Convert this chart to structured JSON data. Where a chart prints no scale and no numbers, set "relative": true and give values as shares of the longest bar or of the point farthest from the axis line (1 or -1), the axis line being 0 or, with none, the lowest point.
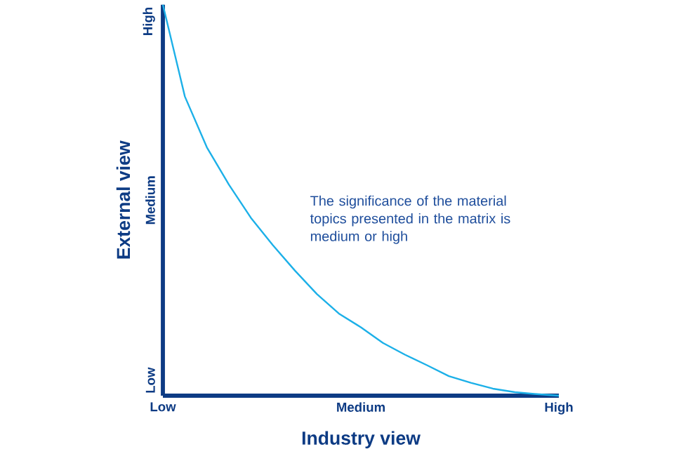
{
  "chart_data": {
    "type": "line",
    "xlabel": "Industry view",
    "ylabel": "External view",
    "relative": true,
    "annotations": [
      "The significance of the material topics presented in the matrix is medium or high",
      "Low",
      "Medium",
      "High"
    ],
    "categories": [
      "Low",
      null,
      null,
      null,
      null,
      null,
      null,
      null,
      null,
      "Medium",
      null,
      null,
      null,
      null,
      null,
      null,
      null,
      null,
      "High"
    ],
    "values": [
      1.0,
      0.765,
      0.635,
      0.54,
      0.455,
      0.385,
      0.32,
      0.26,
      0.21,
      0.175,
      0.135,
      0.105,
      0.078,
      0.05,
      0.033,
      0.018,
      0.009,
      0.004,
      0.0
    ],
    "color": "#1cb0e8"
  }
}
